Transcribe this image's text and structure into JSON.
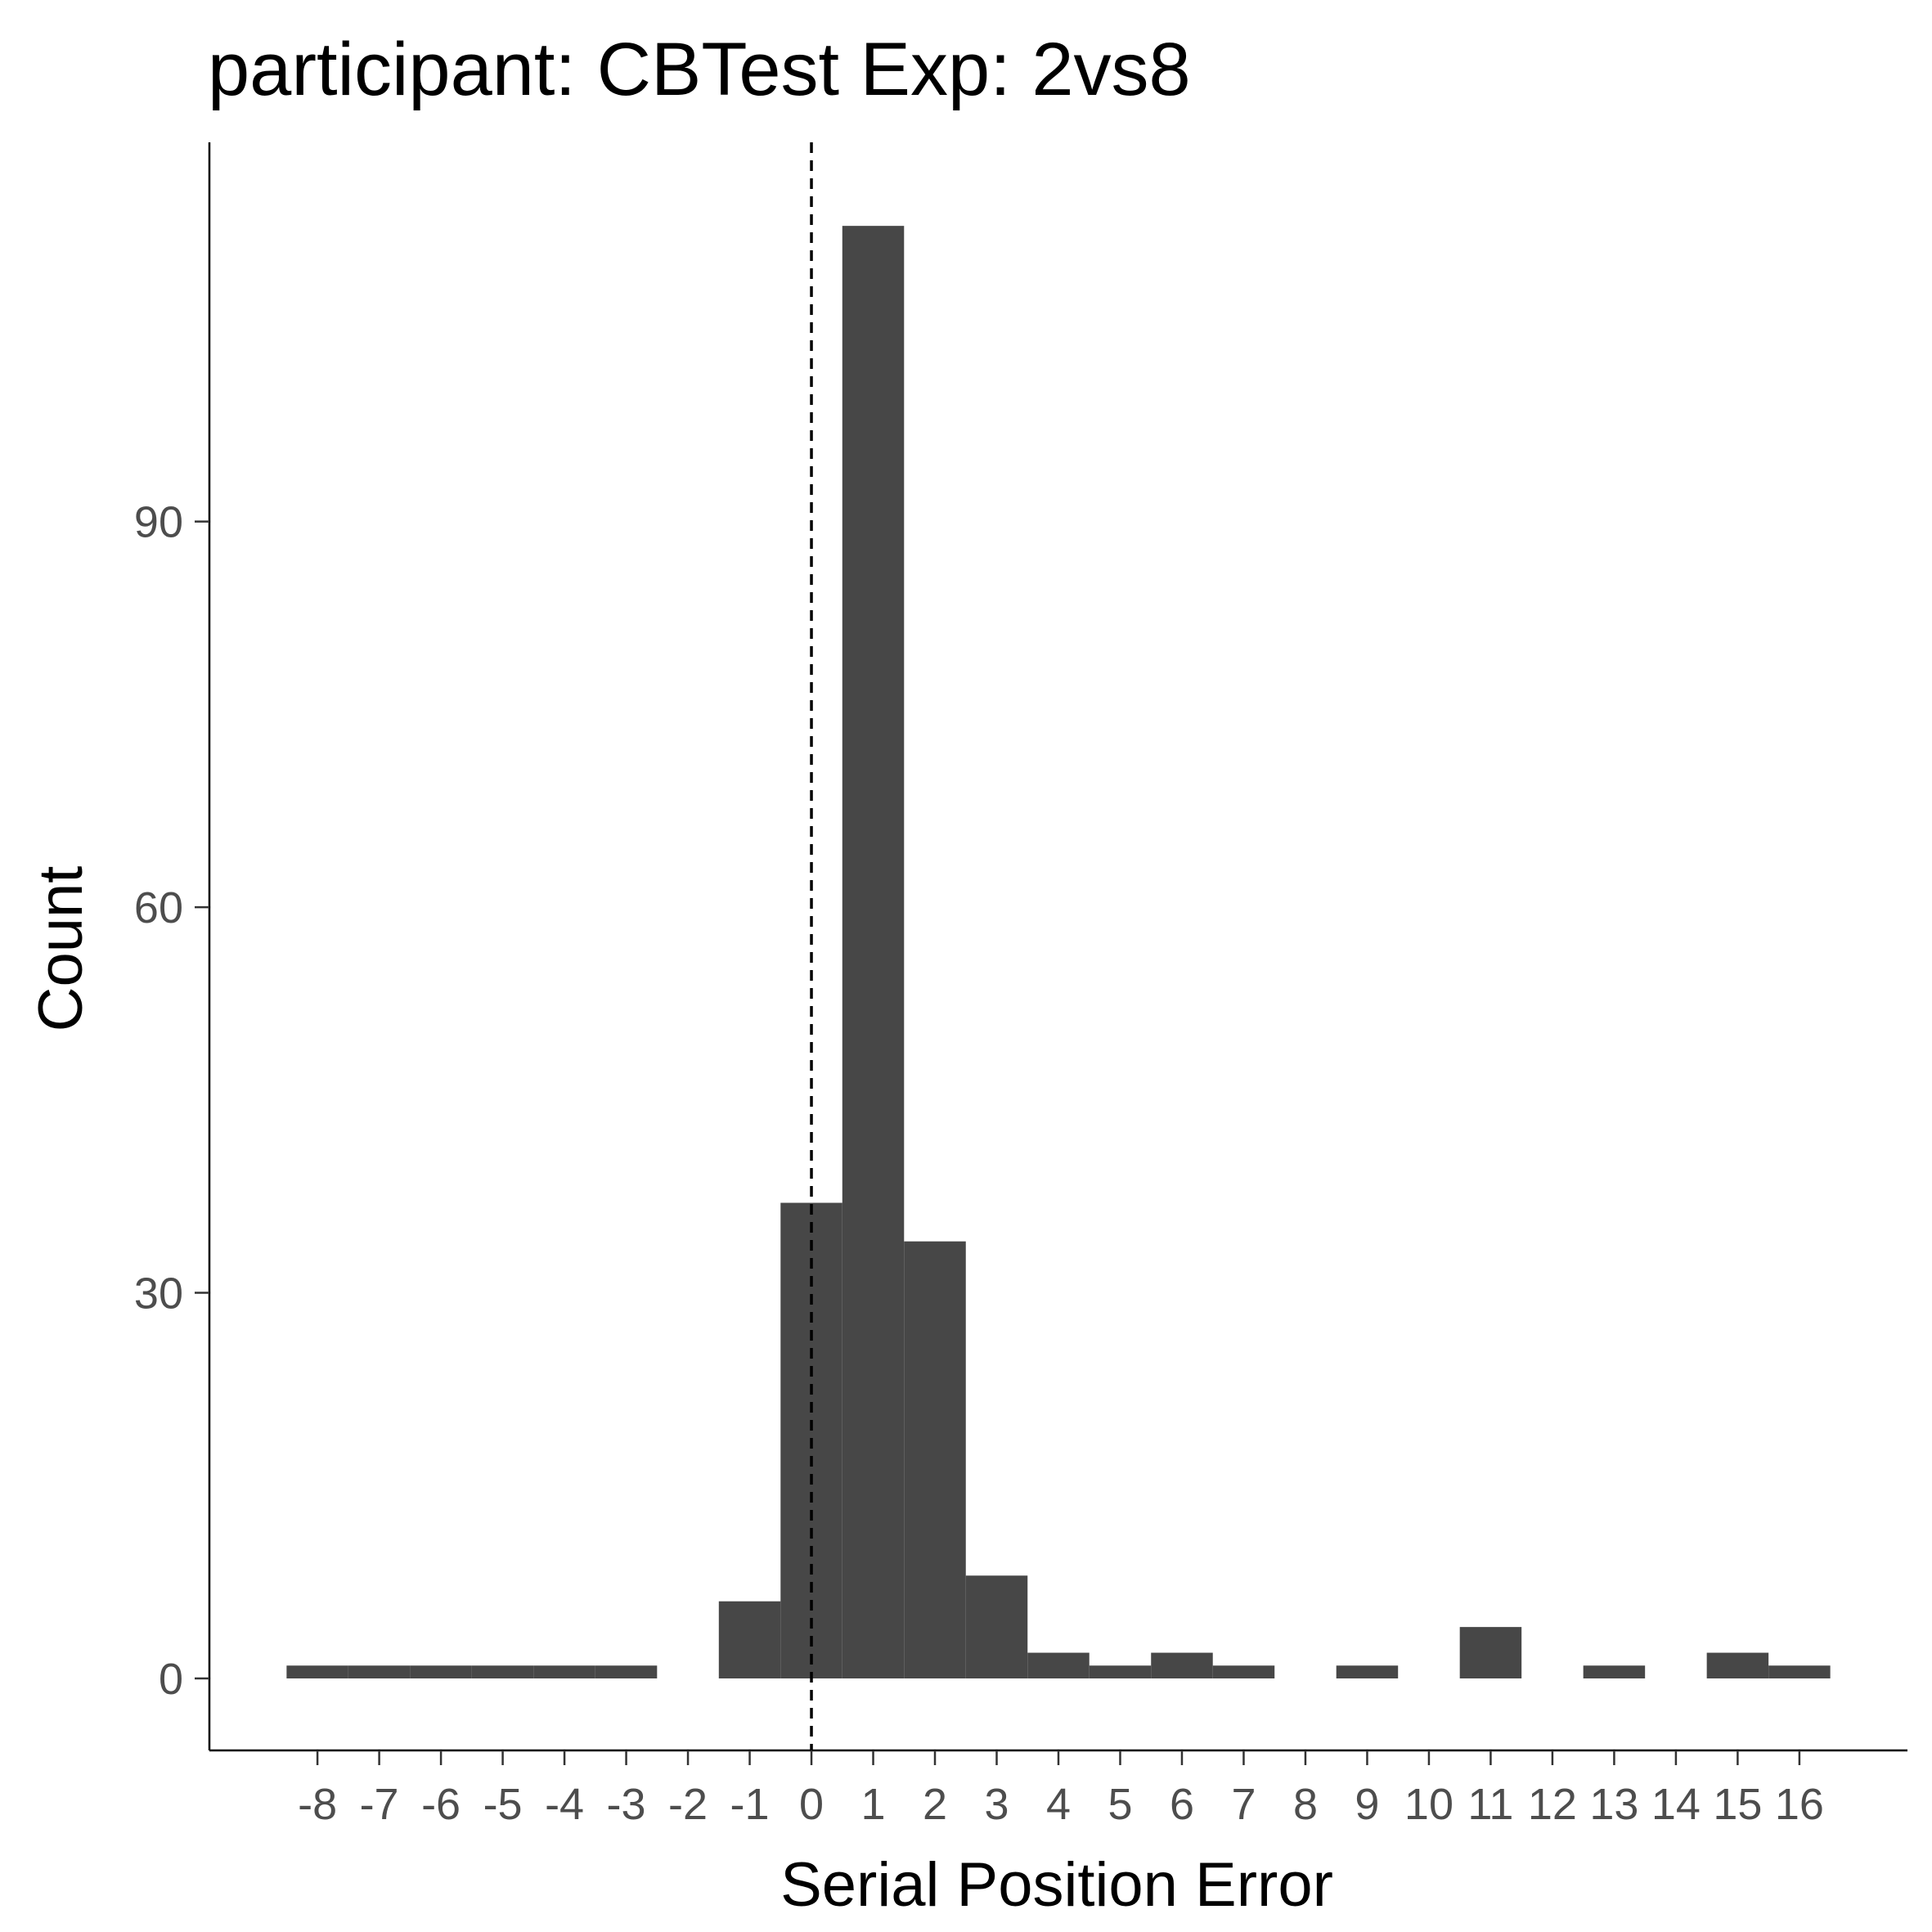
{
  "chart_data": {
    "type": "bar",
    "title": "participant: CBTest Exp: 2vs8",
    "xlabel": "Serial Position Error",
    "ylabel": "Count",
    "x": [
      -8,
      -7,
      -6,
      -5,
      -4,
      -3,
      -1,
      0,
      1,
      2,
      3,
      4,
      5,
      6,
      7,
      9,
      11,
      13,
      15,
      16
    ],
    "values": [
      1,
      1,
      1,
      1,
      1,
      1,
      6,
      37,
      113,
      34,
      8,
      2,
      1,
      2,
      1,
      1,
      4,
      1,
      2,
      1
    ],
    "x_ticks": [
      -8,
      -7,
      -6,
      -5,
      -4,
      -3,
      -2,
      -1,
      0,
      1,
      2,
      3,
      4,
      5,
      6,
      7,
      8,
      9,
      10,
      11,
      12,
      13,
      14,
      15,
      16
    ],
    "y_ticks": [
      0,
      30,
      60,
      90
    ],
    "xlim": [
      -9.75,
      17.75
    ],
    "ylim": [
      -5.6,
      119.5
    ],
    "reference_line_x": 0,
    "grid": false,
    "legend": "none",
    "bar_color": "#474747"
  }
}
